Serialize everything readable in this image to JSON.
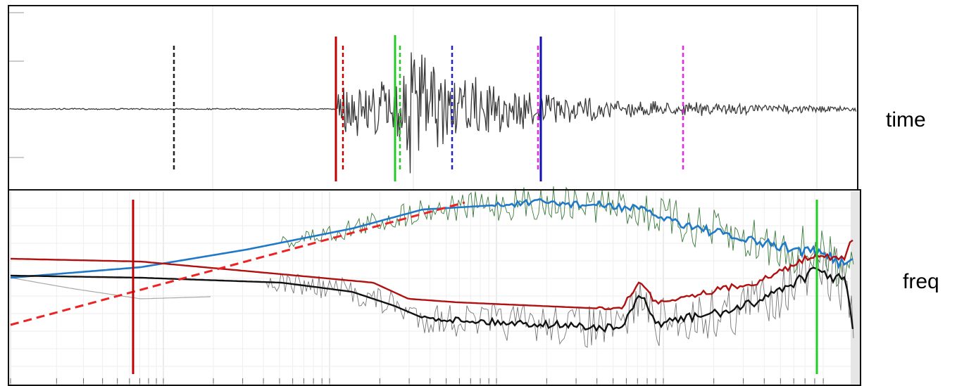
{
  "panels": [
    {
      "label": "time"
    },
    {
      "label": "freq"
    }
  ]
}
